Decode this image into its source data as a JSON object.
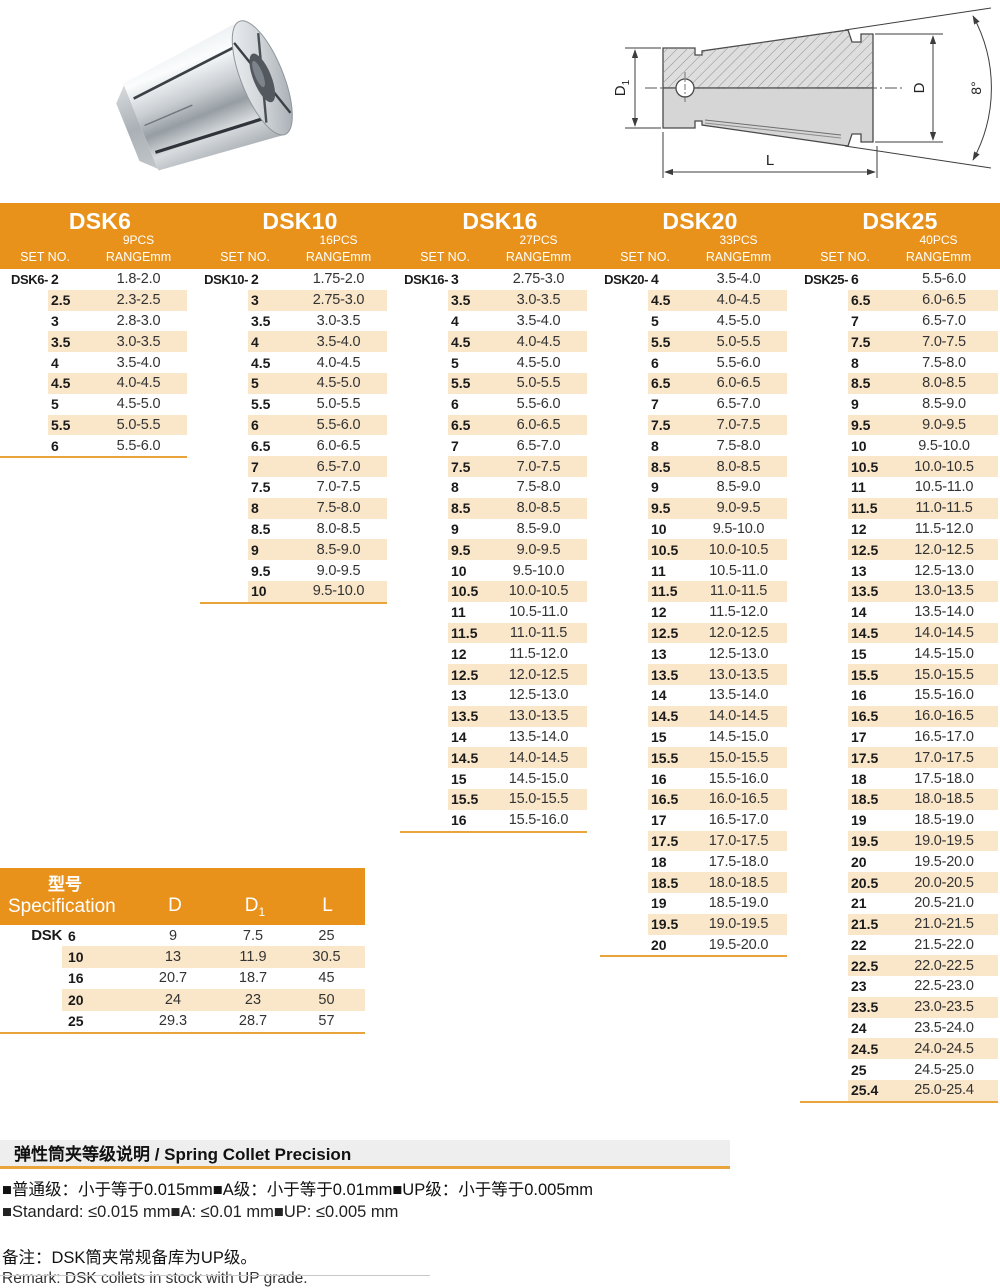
{
  "diagram": {
    "d1_base": "D",
    "d1_sub": "1",
    "d": "D",
    "l": "L",
    "angle": "8°"
  },
  "collet_tables": [
    {
      "model": "DSK6",
      "pcs": "9PCS",
      "set_no_label": "SET NO.",
      "range_label": "RANGEmm",
      "prefix": "DSK6-",
      "rows": [
        [
          "2",
          "1.8-2.0"
        ],
        [
          "2.5",
          "2.3-2.5"
        ],
        [
          "3",
          "2.8-3.0"
        ],
        [
          "3.5",
          "3.0-3.5"
        ],
        [
          "4",
          "3.5-4.0"
        ],
        [
          "4.5",
          "4.0-4.5"
        ],
        [
          "5",
          "4.5-5.0"
        ],
        [
          "5.5",
          "5.0-5.5"
        ],
        [
          "6",
          "5.5-6.0"
        ]
      ]
    },
    {
      "model": "DSK10",
      "pcs": "16PCS",
      "set_no_label": "SET NO.",
      "range_label": "RANGEmm",
      "prefix": "DSK10-",
      "rows": [
        [
          "2",
          "1.75-2.0"
        ],
        [
          "3",
          "2.75-3.0"
        ],
        [
          "3.5",
          "3.0-3.5"
        ],
        [
          "4",
          "3.5-4.0"
        ],
        [
          "4.5",
          "4.0-4.5"
        ],
        [
          "5",
          "4.5-5.0"
        ],
        [
          "5.5",
          "5.0-5.5"
        ],
        [
          "6",
          "5.5-6.0"
        ],
        [
          "6.5",
          "6.0-6.5"
        ],
        [
          "7",
          "6.5-7.0"
        ],
        [
          "7.5",
          "7.0-7.5"
        ],
        [
          "8",
          "7.5-8.0"
        ],
        [
          "8.5",
          "8.0-8.5"
        ],
        [
          "9",
          "8.5-9.0"
        ],
        [
          "9.5",
          "9.0-9.5"
        ],
        [
          "10",
          "9.5-10.0"
        ]
      ]
    },
    {
      "model": "DSK16",
      "pcs": "27PCS",
      "set_no_label": "SET NO.",
      "range_label": "RANGEmm",
      "prefix": "DSK16-",
      "rows": [
        [
          "3",
          "2.75-3.0"
        ],
        [
          "3.5",
          "3.0-3.5"
        ],
        [
          "4",
          "3.5-4.0"
        ],
        [
          "4.5",
          "4.0-4.5"
        ],
        [
          "5",
          "4.5-5.0"
        ],
        [
          "5.5",
          "5.0-5.5"
        ],
        [
          "6",
          "5.5-6.0"
        ],
        [
          "6.5",
          "6.0-6.5"
        ],
        [
          "7",
          "6.5-7.0"
        ],
        [
          "7.5",
          "7.0-7.5"
        ],
        [
          "8",
          "7.5-8.0"
        ],
        [
          "8.5",
          "8.0-8.5"
        ],
        [
          "9",
          "8.5-9.0"
        ],
        [
          "9.5",
          "9.0-9.5"
        ],
        [
          "10",
          "9.5-10.0"
        ],
        [
          "10.5",
          "10.0-10.5"
        ],
        [
          "11",
          "10.5-11.0"
        ],
        [
          "11.5",
          "11.0-11.5"
        ],
        [
          "12",
          "11.5-12.0"
        ],
        [
          "12.5",
          "12.0-12.5"
        ],
        [
          "13",
          "12.5-13.0"
        ],
        [
          "13.5",
          "13.0-13.5"
        ],
        [
          "14",
          "13.5-14.0"
        ],
        [
          "14.5",
          "14.0-14.5"
        ],
        [
          "15",
          "14.5-15.0"
        ],
        [
          "15.5",
          "15.0-15.5"
        ],
        [
          "16",
          "15.5-16.0"
        ]
      ]
    },
    {
      "model": "DSK20",
      "pcs": "33PCS",
      "set_no_label": "SET NO.",
      "range_label": "RANGEmm",
      "prefix": "DSK20-",
      "rows": [
        [
          "4",
          "3.5-4.0"
        ],
        [
          "4.5",
          "4.0-4.5"
        ],
        [
          "5",
          "4.5-5.0"
        ],
        [
          "5.5",
          "5.0-5.5"
        ],
        [
          "6",
          "5.5-6.0"
        ],
        [
          "6.5",
          "6.0-6.5"
        ],
        [
          "7",
          "6.5-7.0"
        ],
        [
          "7.5",
          "7.0-7.5"
        ],
        [
          "8",
          "7.5-8.0"
        ],
        [
          "8.5",
          "8.0-8.5"
        ],
        [
          "9",
          "8.5-9.0"
        ],
        [
          "9.5",
          "9.0-9.5"
        ],
        [
          "10",
          "9.5-10.0"
        ],
        [
          "10.5",
          "10.0-10.5"
        ],
        [
          "11",
          "10.5-11.0"
        ],
        [
          "11.5",
          "11.0-11.5"
        ],
        [
          "12",
          "11.5-12.0"
        ],
        [
          "12.5",
          "12.0-12.5"
        ],
        [
          "13",
          "12.5-13.0"
        ],
        [
          "13.5",
          "13.0-13.5"
        ],
        [
          "14",
          "13.5-14.0"
        ],
        [
          "14.5",
          "14.0-14.5"
        ],
        [
          "15",
          "14.5-15.0"
        ],
        [
          "15.5",
          "15.0-15.5"
        ],
        [
          "16",
          "15.5-16.0"
        ],
        [
          "16.5",
          "16.0-16.5"
        ],
        [
          "17",
          "16.5-17.0"
        ],
        [
          "17.5",
          "17.0-17.5"
        ],
        [
          "18",
          "17.5-18.0"
        ],
        [
          "18.5",
          "18.0-18.5"
        ],
        [
          "19",
          "18.5-19.0"
        ],
        [
          "19.5",
          "19.0-19.5"
        ],
        [
          "20",
          "19.5-20.0"
        ]
      ]
    },
    {
      "model": "DSK25",
      "pcs": "40PCS",
      "set_no_label": "SET NO.",
      "range_label": "RANGEmm",
      "prefix": "DSK25-",
      "rows": [
        [
          "6",
          "5.5-6.0"
        ],
        [
          "6.5",
          "6.0-6.5"
        ],
        [
          "7",
          "6.5-7.0"
        ],
        [
          "7.5",
          "7.0-7.5"
        ],
        [
          "8",
          "7.5-8.0"
        ],
        [
          "8.5",
          "8.0-8.5"
        ],
        [
          "9",
          "8.5-9.0"
        ],
        [
          "9.5",
          "9.0-9.5"
        ],
        [
          "10",
          "9.5-10.0"
        ],
        [
          "10.5",
          "10.0-10.5"
        ],
        [
          "11",
          "10.5-11.0"
        ],
        [
          "11.5",
          "11.0-11.5"
        ],
        [
          "12",
          "11.5-12.0"
        ],
        [
          "12.5",
          "12.0-12.5"
        ],
        [
          "13",
          "12.5-13.0"
        ],
        [
          "13.5",
          "13.0-13.5"
        ],
        [
          "14",
          "13.5-14.0"
        ],
        [
          "14.5",
          "14.0-14.5"
        ],
        [
          "15",
          "14.5-15.0"
        ],
        [
          "15.5",
          "15.0-15.5"
        ],
        [
          "16",
          "15.5-16.0"
        ],
        [
          "16.5",
          "16.0-16.5"
        ],
        [
          "17",
          "16.5-17.0"
        ],
        [
          "17.5",
          "17.0-17.5"
        ],
        [
          "18",
          "17.5-18.0"
        ],
        [
          "18.5",
          "18.0-18.5"
        ],
        [
          "19",
          "18.5-19.0"
        ],
        [
          "19.5",
          "19.0-19.5"
        ],
        [
          "20",
          "19.5-20.0"
        ],
        [
          "20.5",
          "20.0-20.5"
        ],
        [
          "21",
          "20.5-21.0"
        ],
        [
          "21.5",
          "21.0-21.5"
        ],
        [
          "22",
          "21.5-22.0"
        ],
        [
          "22.5",
          "22.0-22.5"
        ],
        [
          "23",
          "22.5-23.0"
        ],
        [
          "23.5",
          "23.0-23.5"
        ],
        [
          "24",
          "23.5-24.0"
        ],
        [
          "24.5",
          "24.0-24.5"
        ],
        [
          "25",
          "24.5-25.0"
        ],
        [
          "25.4",
          "25.0-25.4"
        ]
      ]
    }
  ],
  "spec_table": {
    "title_cn": "型号",
    "title_en": "Specification",
    "col_d": "D",
    "col_d1_base": "D",
    "col_d1_sub": "1",
    "col_l": "L",
    "row_prefix": "DSK",
    "rows": [
      [
        "6",
        "9",
        "7.5",
        "25"
      ],
      [
        "10",
        "13",
        "11.9",
        "30.5"
      ],
      [
        "16",
        "20.7",
        "18.7",
        "45"
      ],
      [
        "20",
        "24",
        "23",
        "50"
      ],
      [
        "25",
        "29.3",
        "28.7",
        "57"
      ]
    ]
  },
  "precision": {
    "title": "弹性筒夹等级说明 / Spring Collet Precision",
    "line_cn": "■普通级：小于等于0.015mm■A级：小于等于0.01mm■UP级：小于等于0.005mm",
    "line_en": "■Standard: ≤0.015 mm■A: ≤0.01 mm■UP: ≤0.005 mm",
    "remark_cn": "备注：DSK筒夹常规备库为UP级。",
    "remark_en": "Remark: DSK collets in stock with UP grade."
  },
  "colors": {
    "header_orange": "#E8921C",
    "stripe_peach": "#FAE7CA",
    "rule_orange": "#E9A43C",
    "band_gray": "#EEEEEE"
  }
}
